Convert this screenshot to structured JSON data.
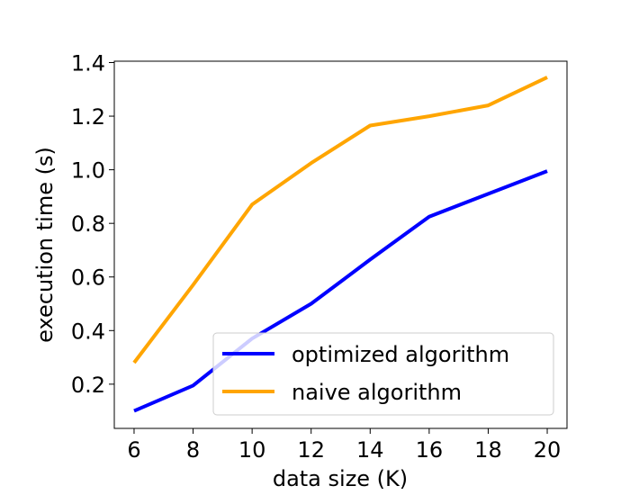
{
  "chart_data": {
    "type": "line",
    "title": "",
    "xlabel": "data size (K)",
    "ylabel": "execution time (s)",
    "x": [
      6,
      8,
      10,
      12,
      14,
      16,
      18,
      20
    ],
    "xticks": [
      6,
      8,
      10,
      12,
      14,
      16,
      18,
      20
    ],
    "yticks": [
      0.2,
      0.4,
      0.6,
      0.8,
      1.0,
      1.2,
      1.4
    ],
    "ytick_labels": [
      "0.2",
      "0.4",
      "0.6",
      "0.8",
      "1.0",
      "1.2",
      "1.4"
    ],
    "xlim": [
      5.33,
      20.67
    ],
    "ylim": [
      0.035,
      1.405
    ],
    "grid": false,
    "legend_position": "lower-right",
    "series": [
      {
        "name": "optimized algorithm",
        "color": "#0000ff",
        "values": [
          0.1,
          0.195,
          0.37,
          0.5,
          0.665,
          0.825,
          0.91,
          0.995
        ]
      },
      {
        "name": "naive algorithm",
        "color": "#ffa500",
        "values": [
          0.28,
          0.57,
          0.87,
          1.025,
          1.165,
          1.2,
          1.24,
          1.345
        ]
      }
    ]
  }
}
